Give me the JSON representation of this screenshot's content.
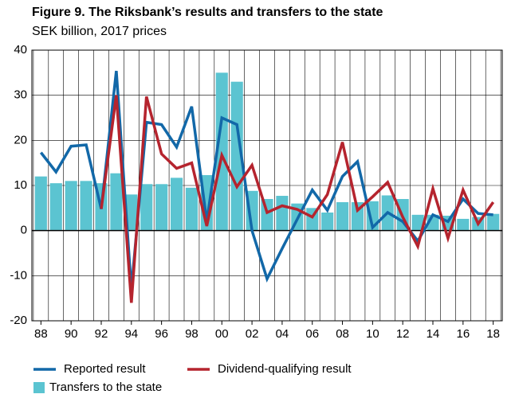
{
  "chart_data": {
    "type": "combo",
    "title": "Figure 9. The Riksbank’s results and transfers to the state",
    "subtitle": "SEK billion, 2017 prices",
    "categories": [
      "88",
      null,
      "90",
      null,
      "92",
      null,
      "94",
      null,
      "96",
      null,
      "98",
      null,
      "00",
      null,
      "02",
      null,
      "04",
      null,
      "06",
      null,
      "08",
      null,
      "10",
      null,
      "12",
      null,
      "14",
      null,
      "16",
      null,
      "18"
    ],
    "ylim": [
      -20,
      40
    ],
    "yticks": [
      -20,
      -10,
      0,
      10,
      20,
      30,
      40
    ],
    "grid": true,
    "series": [
      {
        "name": "Transfers to the state",
        "type": "bar",
        "color": "#5bc4d1",
        "values": [
          12,
          10.5,
          11,
          11,
          10.5,
          12.7,
          8,
          10.3,
          10.3,
          11.7,
          9.5,
          12.3,
          35,
          33,
          8.8,
          7,
          7.7,
          6,
          5,
          4,
          6.3,
          6.3,
          6.5,
          7.8,
          7,
          3.5,
          3.5,
          3.3,
          2.6,
          3,
          3.7
        ]
      },
      {
        "name": "Reported result",
        "type": "line",
        "color": "#1268a8",
        "values": [
          17.3,
          13,
          18.7,
          19,
          4.8,
          35.4,
          -13,
          24,
          23.5,
          18.5,
          27.5,
          2,
          25,
          23.5,
          0,
          -10.7,
          -4,
          2.5,
          9,
          4.5,
          12,
          15.3,
          0.7,
          4,
          2,
          -2.3,
          3.5,
          2,
          7,
          3.8,
          3.5
        ]
      },
      {
        "name": "Dividend-qualifying result",
        "type": "line",
        "color": "#b5242e",
        "values": [
          null,
          null,
          null,
          null,
          4.8,
          30,
          -16,
          29.7,
          17,
          13.8,
          15,
          1,
          16.7,
          9.7,
          14.5,
          4,
          5.5,
          4.7,
          3,
          8,
          19.6,
          4.5,
          7.5,
          10.7,
          3,
          -3.5,
          9.3,
          -1.7,
          9,
          1.5,
          6.3
        ]
      }
    ]
  }
}
